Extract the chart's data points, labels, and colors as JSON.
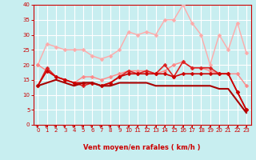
{
  "xlabel": "Vent moyen/en rafales ( km/h )",
  "xlim": [
    -0.5,
    23.5
  ],
  "ylim": [
    0,
    40
  ],
  "yticks": [
    0,
    5,
    10,
    15,
    20,
    25,
    30,
    35,
    40
  ],
  "xticks": [
    0,
    1,
    2,
    3,
    4,
    5,
    6,
    7,
    8,
    9,
    10,
    11,
    12,
    13,
    14,
    15,
    16,
    17,
    18,
    19,
    20,
    21,
    22,
    23
  ],
  "bg_color": "#c8eef0",
  "grid_color": "#ffffff",
  "line1": {
    "x": [
      0,
      1,
      2,
      3,
      4,
      5,
      6,
      7,
      8,
      9,
      10,
      11,
      12,
      13,
      14,
      15,
      16,
      17,
      18,
      19,
      20,
      21,
      22,
      23
    ],
    "y": [
      20,
      27,
      26,
      25,
      25,
      25,
      23,
      22,
      23,
      25,
      31,
      30,
      31,
      30,
      35,
      35,
      40,
      34,
      30,
      20,
      30,
      25,
      34,
      24
    ],
    "color": "#ffaaaa",
    "marker": "D",
    "ms": 2.5,
    "lw": 1.0
  },
  "line2": {
    "x": [
      0,
      1,
      2,
      3,
      4,
      5,
      6,
      7,
      8,
      9,
      10,
      11,
      12,
      13,
      14,
      15,
      16,
      17,
      18,
      19,
      20,
      21,
      22,
      23
    ],
    "y": [
      20,
      18,
      16,
      15,
      14,
      16,
      16,
      15,
      16,
      17,
      18,
      18,
      18,
      17,
      18,
      20,
      21,
      19,
      19,
      18,
      17,
      17,
      17,
      13
    ],
    "color": "#ff8888",
    "marker": "D",
    "ms": 2.5,
    "lw": 1.0
  },
  "line3": {
    "x": [
      0,
      1,
      2,
      3,
      4,
      5,
      6,
      7,
      8,
      9,
      10,
      11,
      12,
      13,
      14,
      15,
      16,
      17,
      18,
      19,
      20,
      21,
      22,
      23
    ],
    "y": [
      13,
      19,
      16,
      15,
      14,
      13,
      14,
      13,
      14,
      16,
      18,
      17,
      18,
      17,
      20,
      16,
      21,
      19,
      19,
      19,
      17,
      17,
      11,
      5
    ],
    "color": "#dd2222",
    "marker": "D",
    "ms": 2.5,
    "lw": 1.2
  },
  "line4": {
    "x": [
      0,
      1,
      2,
      3,
      4,
      5,
      6,
      7,
      8,
      9,
      10,
      11,
      12,
      13,
      14,
      15,
      16,
      17,
      18,
      19,
      20,
      21,
      22,
      23
    ],
    "y": [
      13,
      18,
      16,
      15,
      14,
      14,
      14,
      13,
      14,
      16,
      17,
      17,
      17,
      17,
      17,
      16,
      17,
      17,
      17,
      17,
      17,
      17,
      11,
      5
    ],
    "color": "#cc0000",
    "marker": "D",
    "ms": 2.5,
    "lw": 1.2
  },
  "line5": {
    "x": [
      0,
      1,
      2,
      3,
      4,
      5,
      6,
      7,
      8,
      9,
      10,
      11,
      12,
      13,
      14,
      15,
      16,
      17,
      18,
      19,
      20,
      21,
      22,
      23
    ],
    "y": [
      13,
      14,
      15,
      14,
      13,
      14,
      14,
      13,
      13,
      14,
      14,
      14,
      14,
      13,
      13,
      13,
      13,
      13,
      13,
      13,
      12,
      12,
      8,
      4
    ],
    "color": "#aa0000",
    "marker": null,
    "ms": 0,
    "lw": 1.5
  },
  "arrow_angles": [
    50,
    50,
    50,
    50,
    50,
    50,
    50,
    50,
    50,
    40,
    15,
    10,
    5,
    5,
    5,
    5,
    5,
    5,
    5,
    5,
    5,
    5,
    5,
    5
  ],
  "tick_fontsize": 5,
  "label_fontsize": 6,
  "tick_color": "#cc0000",
  "spine_color": "#cc0000"
}
